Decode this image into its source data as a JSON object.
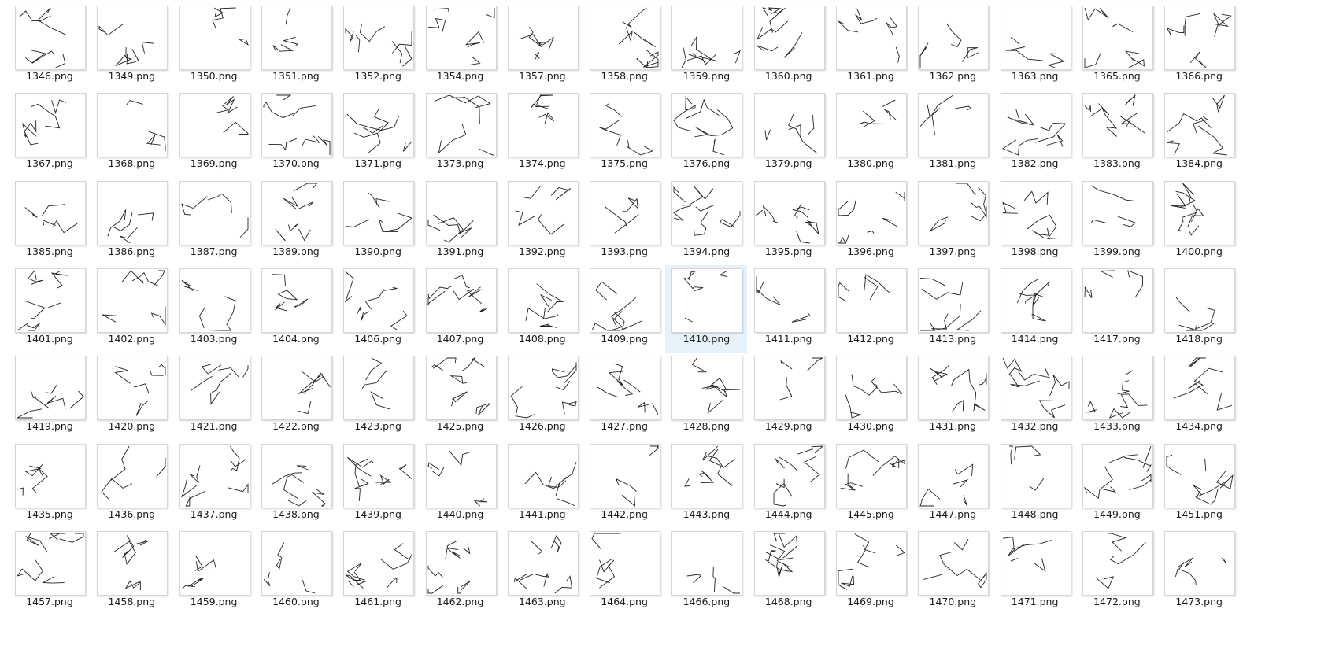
{
  "view": "large-icons",
  "selected_file": "1410.png",
  "files": [
    [
      "1346.png",
      "1349.png",
      "1350.png",
      "1351.png",
      "1352.png",
      "1354.png",
      "1357.png",
      "1358.png",
      "1359.png",
      "1360.png",
      "1361.png",
      "1362.png",
      "1363.png",
      "1365.png",
      "1366.png"
    ],
    [
      "1367.png",
      "1368.png",
      "1369.png",
      "1370.png",
      "1371.png",
      "1373.png",
      "1374.png",
      "1375.png",
      "1376.png",
      "1379.png",
      "1380.png",
      "1381.png",
      "1382.png",
      "1383.png",
      "1384.png"
    ],
    [
      "1385.png",
      "1386.png",
      "1387.png",
      "1389.png",
      "1390.png",
      "1391.png",
      "1392.png",
      "1393.png",
      "1394.png",
      "1395.png",
      "1396.png",
      "1397.png",
      "1398.png",
      "1399.png",
      "1400.png"
    ],
    [
      "1401.png",
      "1402.png",
      "1403.png",
      "1404.png",
      "1406.png",
      "1407.png",
      "1408.png",
      "1409.png",
      "1410.png",
      "1411.png",
      "1412.png",
      "1413.png",
      "1414.png",
      "1417.png",
      "1418.png"
    ],
    [
      "1419.png",
      "1420.png",
      "1421.png",
      "1422.png",
      "1423.png",
      "1425.png",
      "1426.png",
      "1427.png",
      "1428.png",
      "1429.png",
      "1430.png",
      "1431.png",
      "1432.png",
      "1433.png",
      "1434.png"
    ],
    [
      "1435.png",
      "1436.png",
      "1437.png",
      "1438.png",
      "1439.png",
      "1440.png",
      "1441.png",
      "1442.png",
      "1443.png",
      "1444.png",
      "1445.png",
      "1447.png",
      "1448.png",
      "1449.png",
      "1451.png"
    ],
    [
      "1457.png",
      "1458.png",
      "1459.png",
      "1460.png",
      "1461.png",
      "1462.png",
      "1463.png",
      "1464.png",
      "1466.png",
      "1468.png",
      "1469.png",
      "1470.png",
      "1471.png",
      "1472.png",
      "1473.png"
    ]
  ],
  "colors": {
    "selection_bg": "#e5f1fb",
    "label_text": "#1a1a1a",
    "thumb_border": "#d6d6d6"
  }
}
